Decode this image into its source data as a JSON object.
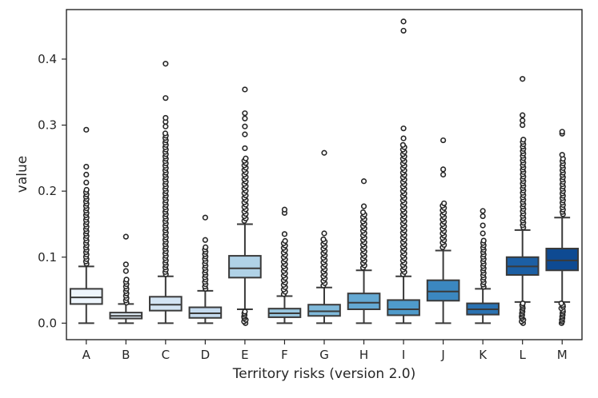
{
  "chart_data": {
    "type": "box",
    "title": "",
    "xlabel": "Territory risks (version 2.0)",
    "ylabel": "value",
    "ylim": [
      -0.025,
      0.475
    ],
    "yticks": [
      0.0,
      0.1,
      0.2,
      0.3,
      0.4
    ],
    "ytick_labels": [
      "0.0",
      "0.1",
      "0.2",
      "0.3",
      "0.4"
    ],
    "grid": false,
    "categories": [
      "A",
      "B",
      "C",
      "D",
      "E",
      "F",
      "G",
      "H",
      "I",
      "J",
      "K",
      "L",
      "M"
    ],
    "colors": [
      "#eef5fc",
      "#e2eef9",
      "#d3e4f3",
      "#c5dbef",
      "#b0d2e7",
      "#98c6df",
      "#7fb9da",
      "#64a9d3",
      "#4f9bcb",
      "#3b87c0",
      "#2a72b2",
      "#1c5fa4",
      "#0e4a92"
    ],
    "boxes": [
      {
        "name": "A",
        "whislo": 0.0,
        "q1": 0.029,
        "med": 0.039,
        "q3": 0.052,
        "whishi": 0.086,
        "outlier_range": [
          0.09,
          0.205
        ],
        "outliers": [
          0.213,
          0.225,
          0.237,
          0.293
        ]
      },
      {
        "name": "B",
        "whislo": 0.0,
        "q1": 0.007,
        "med": 0.011,
        "q3": 0.016,
        "whishi": 0.029,
        "outlier_range": [
          0.031,
          0.068
        ],
        "outliers": [
          0.079,
          0.089,
          0.131
        ]
      },
      {
        "name": "C",
        "whislo": 0.0,
        "q1": 0.019,
        "med": 0.028,
        "q3": 0.04,
        "whishi": 0.071,
        "outlier_range": [
          0.074,
          0.29
        ],
        "outliers": [
          0.298,
          0.305,
          0.311,
          0.341,
          0.393
        ]
      },
      {
        "name": "D",
        "whislo": 0.0,
        "q1": 0.008,
        "med": 0.015,
        "q3": 0.024,
        "whishi": 0.049,
        "outlier_range": [
          0.052,
          0.118
        ],
        "outliers": [
          0.126,
          0.16
        ]
      },
      {
        "name": "E",
        "whislo": 0.021,
        "q1": 0.069,
        "med": 0.083,
        "q3": 0.102,
        "whishi": 0.15,
        "outlier_range": [
          0.155,
          0.25
        ],
        "outliers": [
          0.265,
          0.286,
          0.298,
          0.31,
          0.318,
          0.354
        ],
        "low_outlier_range": [
          0.0,
          0.018
        ]
      },
      {
        "name": "F",
        "whislo": 0.0,
        "q1": 0.009,
        "med": 0.015,
        "q3": 0.022,
        "whishi": 0.041,
        "outlier_range": [
          0.044,
          0.125
        ],
        "outliers": [
          0.135,
          0.167,
          0.172
        ]
      },
      {
        "name": "G",
        "whislo": 0.0,
        "q1": 0.011,
        "med": 0.018,
        "q3": 0.028,
        "whishi": 0.054,
        "outlier_range": [
          0.057,
          0.13
        ],
        "outliers": [
          0.136,
          0.258
        ]
      },
      {
        "name": "H",
        "whislo": 0.0,
        "q1": 0.021,
        "med": 0.031,
        "q3": 0.045,
        "whishi": 0.08,
        "outlier_range": [
          0.084,
          0.17
        ],
        "outliers": [
          0.177,
          0.215
        ]
      },
      {
        "name": "I",
        "whislo": 0.0,
        "q1": 0.012,
        "med": 0.021,
        "q3": 0.035,
        "whishi": 0.071,
        "outlier_range": [
          0.074,
          0.27
        ],
        "outliers": [
          0.28,
          0.295,
          0.443,
          0.457
        ]
      },
      {
        "name": "J",
        "whislo": 0.0,
        "q1": 0.034,
        "med": 0.048,
        "q3": 0.065,
        "whishi": 0.11,
        "outlier_range": [
          0.115,
          0.182
        ],
        "outliers": [
          0.225,
          0.233,
          0.277
        ]
      },
      {
        "name": "K",
        "whislo": 0.0,
        "q1": 0.013,
        "med": 0.021,
        "q3": 0.03,
        "whishi": 0.052,
        "outlier_range": [
          0.055,
          0.128
        ],
        "outliers": [
          0.136,
          0.148,
          0.162,
          0.17
        ]
      },
      {
        "name": "L",
        "whislo": 0.032,
        "q1": 0.073,
        "med": 0.086,
        "q3": 0.1,
        "whishi": 0.141,
        "outlier_range": [
          0.145,
          0.28
        ],
        "outliers": [
          0.3,
          0.307,
          0.315,
          0.37
        ],
        "low_outlier_range": [
          0.0,
          0.03
        ]
      },
      {
        "name": "M",
        "whislo": 0.032,
        "q1": 0.08,
        "med": 0.095,
        "q3": 0.113,
        "whishi": 0.16,
        "outlier_range": [
          0.165,
          0.25
        ],
        "outliers": [
          0.255,
          0.287,
          0.29
        ],
        "low_outlier_range": [
          0.0,
          0.03
        ]
      }
    ]
  }
}
